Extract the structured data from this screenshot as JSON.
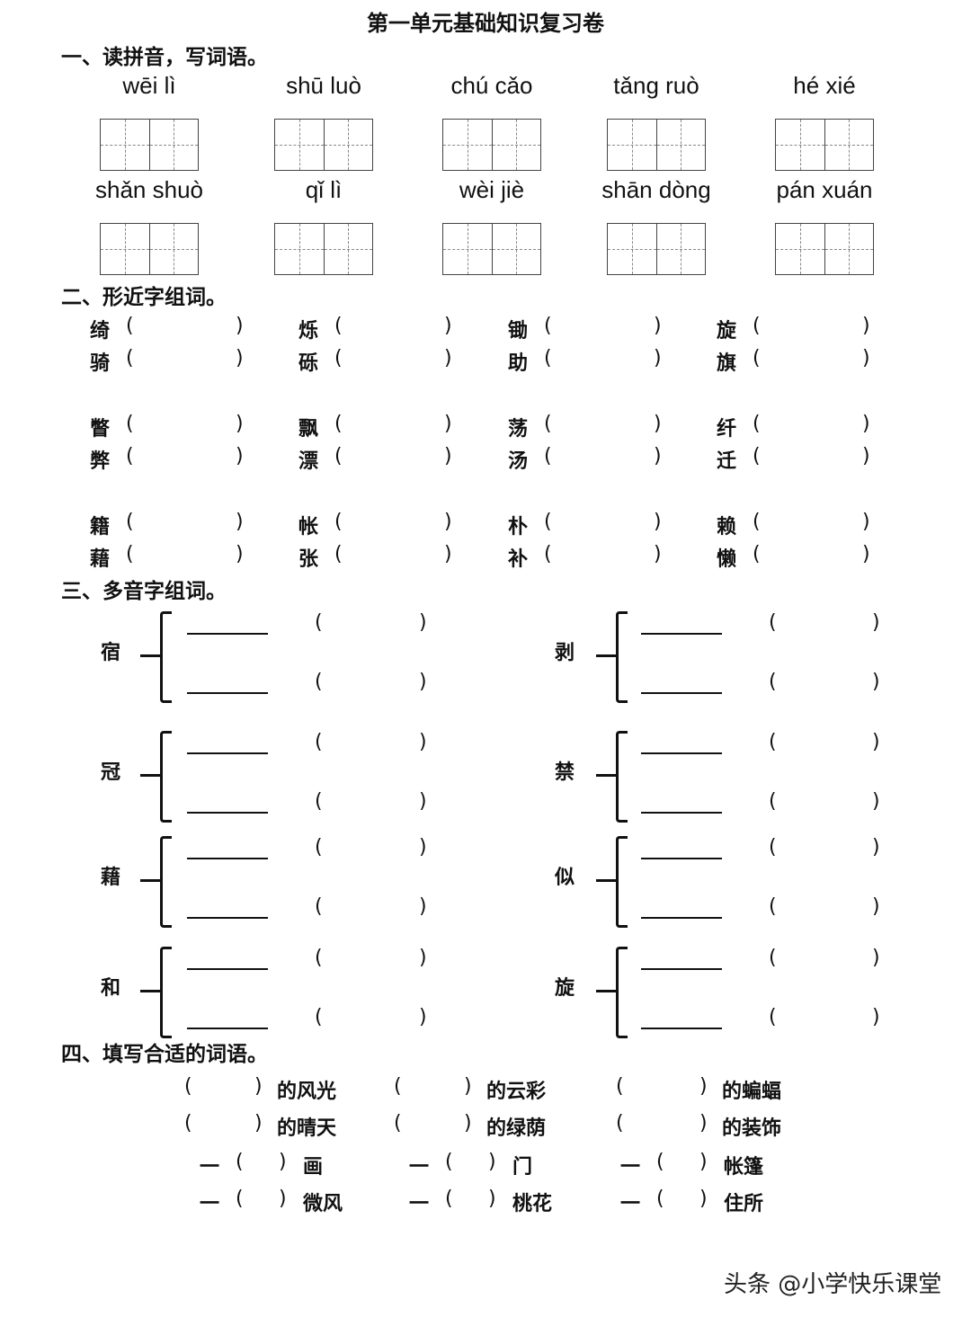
{
  "title": "第一单元基础知识复习卷",
  "section1": {
    "heading": "一、读拼音，写词语。",
    "pinyin": [
      "wēi lì",
      "shū luò",
      "chú cǎo",
      "tǎng ruò",
      "hé xié",
      "shǎn shuò",
      "qǐ lì",
      "wèi jiè",
      "shān dòng",
      "pán xuán"
    ]
  },
  "section2": {
    "heading": "二、形近字组词。",
    "open_paren": "(",
    "close_paren": ")",
    "rows": [
      [
        "绮",
        "烁",
        "锄",
        "旋"
      ],
      [
        "骑",
        "砾",
        "助",
        "旗"
      ],
      [
        "瞥",
        "飘",
        "荡",
        "纤"
      ],
      [
        "弊",
        "漂",
        "汤",
        "迁"
      ],
      [
        "籍",
        "帐",
        "朴",
        "赖"
      ],
      [
        "藉",
        "张",
        "补",
        "懒"
      ]
    ]
  },
  "section3": {
    "heading": "三、多音字组词。",
    "open_paren": "(",
    "close_paren": ")",
    "left": [
      "宿",
      "冠",
      "藉",
      "和"
    ],
    "right": [
      "剥",
      "禁",
      "似",
      "旋"
    ]
  },
  "section4": {
    "heading": "四、填写合适的词语。",
    "open_paren": "(",
    "close_paren": ")",
    "prefix": "一",
    "rows_de": [
      [
        "的风光",
        "的云彩",
        "的蝙蝠"
      ],
      [
        "的晴天",
        "的绿荫",
        "的装饰"
      ]
    ],
    "rows_yi": [
      [
        "画",
        "门",
        "帐篷"
      ],
      [
        "微风",
        "桃花",
        "住所"
      ]
    ]
  },
  "watermark": "头条 @小学快乐课堂"
}
